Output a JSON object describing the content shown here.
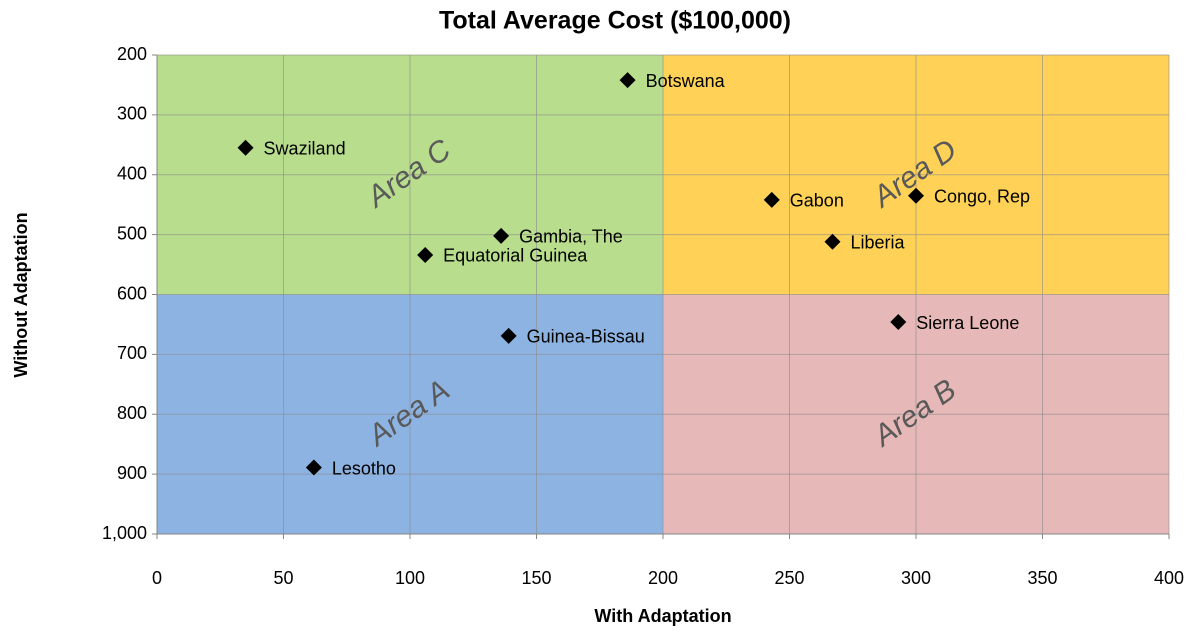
{
  "chart_data": {
    "type": "scatter",
    "title": "Total Average Cost ($100,000)",
    "x_label": "With Adaptation",
    "y_label": "Without Adaptation",
    "xlim": [
      0,
      400
    ],
    "xticks": [
      0,
      50,
      100,
      150,
      200,
      250,
      300,
      350,
      400
    ],
    "ylim": [
      200,
      1000
    ],
    "y_inverted": true,
    "yticks": [
      200,
      300,
      400,
      500,
      600,
      700,
      800,
      900,
      {
        "value": 1000,
        "label": "1,000"
      }
    ],
    "grid": true,
    "regions": [
      {
        "label": "Area A",
        "xlim": [
          0,
          200
        ],
        "ylim": [
          600,
          1000
        ],
        "color": "#8db3e2"
      },
      {
        "label": "Area B",
        "xlim": [
          200,
          400
        ],
        "ylim": [
          600,
          1000
        ],
        "color": "#e6b9b8"
      },
      {
        "label": "Area C",
        "xlim": [
          0,
          200
        ],
        "ylim": [
          200,
          600
        ],
        "color": "#b8dd8c"
      },
      {
        "label": "Area D",
        "xlim": [
          200,
          400
        ],
        "ylim": [
          200,
          600
        ],
        "color": "#ffd257"
      }
    ],
    "series": [
      {
        "color": "#000000",
        "x": [
          186,
          35,
          136,
          106,
          139,
          62,
          243,
          300,
          267,
          293
        ],
        "values": [
          242,
          355,
          502,
          534,
          669,
          889,
          442,
          435,
          512,
          646
        ],
        "labels": [
          "Botswana",
          "Swaziland",
          "Gambia, The",
          "Equatorial Guinea",
          "Guinea-Bissau",
          "Lesotho",
          "Gabon",
          "Congo, Rep",
          "Liberia",
          "Sierra Leone"
        ]
      }
    ]
  }
}
